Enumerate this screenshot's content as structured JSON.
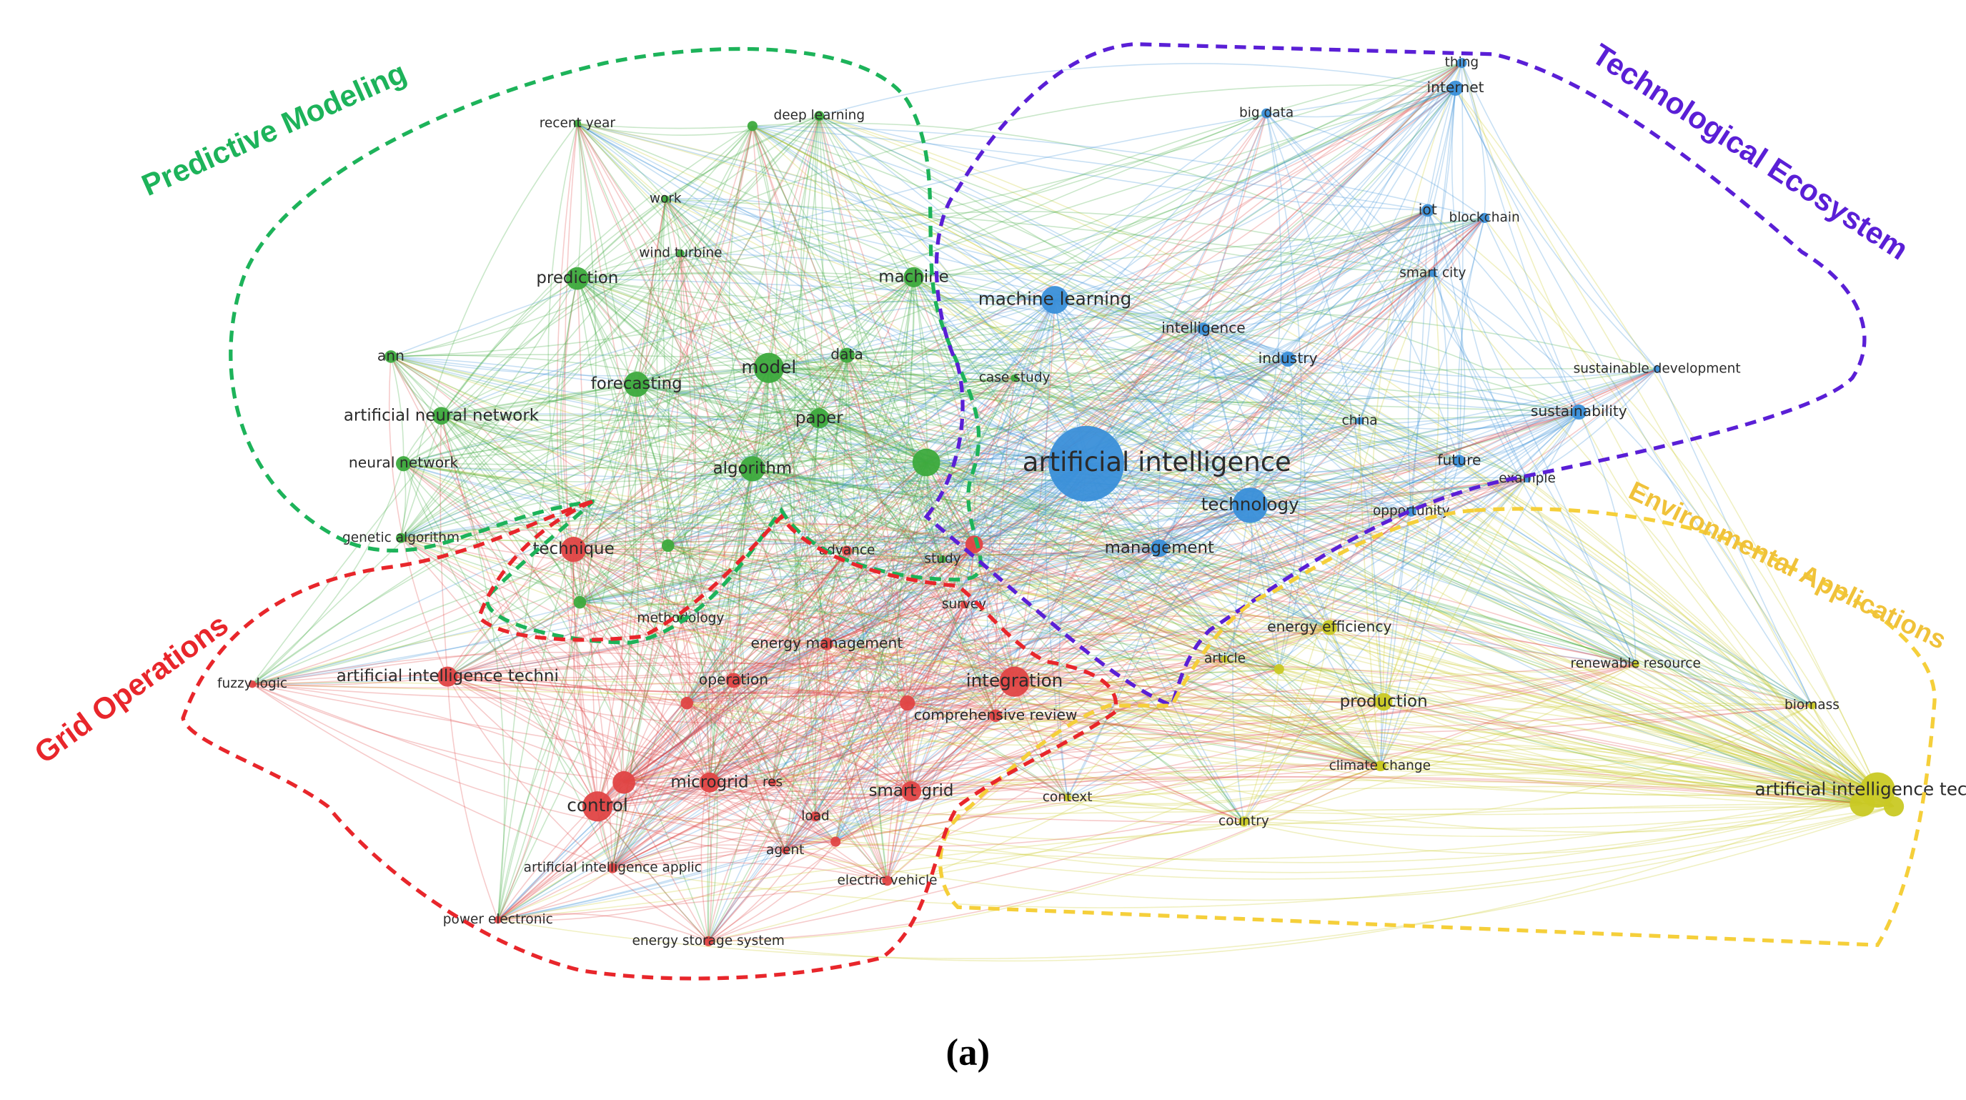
{
  "clusters": [
    {
      "label": "Predictive Modeling",
      "color": "#3daa3d",
      "outline": "#1db35a",
      "nodes": [
        {
          "label": "recent year"
        },
        {
          "label": "deep learning"
        },
        {
          "label": "work"
        },
        {
          "label": "wind turbine"
        },
        {
          "label": "prediction"
        },
        {
          "label": "machine"
        },
        {
          "label": "ann"
        },
        {
          "label": "model"
        },
        {
          "label": "data"
        },
        {
          "label": "forecasting"
        },
        {
          "label": "paper"
        },
        {
          "label": "artificial neural network"
        },
        {
          "label": "neural network"
        },
        {
          "label": "algorithm"
        },
        {
          "label": "genetic algorithm"
        },
        {
          "label": "study"
        },
        {
          "label": "methodology"
        },
        {
          "label": "case study"
        }
      ]
    },
    {
      "label": "Technological Ecosystem",
      "color": "#3a8fd9",
      "outline": "#5a1fd6",
      "nodes": [
        {
          "label": "thing"
        },
        {
          "label": "internet"
        },
        {
          "label": "big data"
        },
        {
          "label": "iot"
        },
        {
          "label": "blockchain"
        },
        {
          "label": "smart city"
        },
        {
          "label": "machine learning"
        },
        {
          "label": "intelligence"
        },
        {
          "label": "industry"
        },
        {
          "label": "sustainable development"
        },
        {
          "label": "sustainability"
        },
        {
          "label": "china"
        },
        {
          "label": "artificial intelligence"
        },
        {
          "label": "future"
        },
        {
          "label": "example"
        },
        {
          "label": "technology"
        },
        {
          "label": "opportunity"
        },
        {
          "label": "management"
        }
      ]
    },
    {
      "label": "Environmental Applications",
      "color": "#c9c924",
      "outline": "#f5cf3a",
      "nodes": [
        {
          "label": "energy efficiency"
        },
        {
          "label": "article"
        },
        {
          "label": "renewable resource"
        },
        {
          "label": "production"
        },
        {
          "label": "biomass"
        },
        {
          "label": "climate change"
        },
        {
          "label": "artificial intelligence techno"
        },
        {
          "label": "context"
        },
        {
          "label": "country"
        }
      ]
    },
    {
      "label": "Grid Operations",
      "color": "#e04545",
      "outline": "#e8262b",
      "nodes": [
        {
          "label": "technique"
        },
        {
          "label": "advance"
        },
        {
          "label": "survey"
        },
        {
          "label": "energy management"
        },
        {
          "label": "artificial intelligence techni"
        },
        {
          "label": "fuzzy logic"
        },
        {
          "label": "operation"
        },
        {
          "label": "integration"
        },
        {
          "label": "comprehensive review"
        },
        {
          "label": "control"
        },
        {
          "label": "microgrid"
        },
        {
          "label": "res"
        },
        {
          "label": "smart grid"
        },
        {
          "label": "load"
        },
        {
          "label": "agent"
        },
        {
          "label": "artificial intelligence applic"
        },
        {
          "label": "electric vehicle"
        },
        {
          "label": "power electronic"
        },
        {
          "label": "energy storage system"
        }
      ]
    }
  ],
  "caption": "(a)"
}
